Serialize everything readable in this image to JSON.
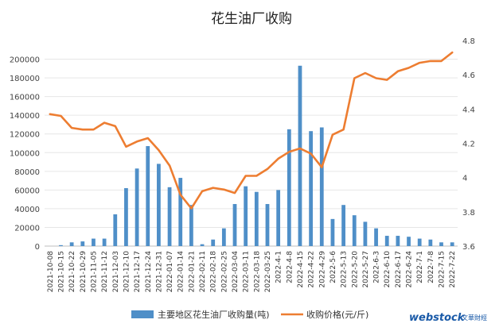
{
  "chart_data": {
    "type": "bar",
    "title": "花生油厂收购",
    "categories": [
      "2021-10-08",
      "2021-10-15",
      "2021-10-22",
      "2021-10-29",
      "2021-11-05",
      "2021-11-12",
      "2021-12-03",
      "2021-12-10",
      "2021-12-17",
      "2021-12-24",
      "2021-12-31",
      "2022-01-07",
      "2022-01-14",
      "2022-01-21",
      "2022-02-11",
      "2022-02-18",
      "2022-02-25",
      "2022-03-04",
      "2022-03-11",
      "2022-03-18",
      "2022-03-25",
      "2022-4-1",
      "2022-4-8",
      "2022-4-15",
      "2022-4-22",
      "2022-4-29",
      "2022-5-6",
      "2022-5-13",
      "2022-5-20",
      "2022-5-27",
      "2022-6-3",
      "2022-6-10",
      "2022-6-17",
      "2022-6-24",
      "2022-7-1",
      "2022-7-8",
      "2022-7-15",
      "2022-7-22"
    ],
    "series": [
      {
        "name": "主要地区花生油厂收购量(吨)",
        "type": "bar",
        "axis": "left",
        "color": "#4f8fc8",
        "values": [
          0,
          1000,
          4000,
          5000,
          8000,
          8000,
          34000,
          62000,
          83000,
          107000,
          88000,
          63000,
          73000,
          44000,
          2000,
          7000,
          19000,
          45000,
          64000,
          58000,
          45000,
          60000,
          125000,
          193000,
          123000,
          127000,
          29000,
          44000,
          33000,
          26000,
          19000,
          11000,
          11000,
          10000,
          8000,
          7000,
          4000,
          4000
        ]
      },
      {
        "name": "收购价格(元/斤)",
        "type": "line",
        "axis": "right",
        "color": "#ed7d31",
        "values": [
          4.37,
          4.36,
          4.29,
          4.28,
          4.28,
          4.32,
          4.3,
          4.18,
          4.21,
          4.23,
          4.16,
          4.07,
          3.9,
          3.82,
          3.92,
          3.94,
          3.93,
          3.91,
          4.01,
          4.01,
          4.05,
          4.11,
          4.15,
          4.17,
          4.14,
          4.06,
          4.25,
          4.28,
          4.58,
          4.61,
          4.58,
          4.57,
          4.62,
          4.64,
          4.67,
          4.68,
          4.68,
          4.73
        ]
      }
    ],
    "ylim_left": [
      0,
      220000
    ],
    "yticks_left": [
      "0",
      "20000",
      "40000",
      "60000",
      "80000",
      "100000",
      "120000",
      "140000",
      "160000",
      "180000",
      "200000"
    ],
    "ylim_right": [
      3.6,
      4.8
    ],
    "yticks_right": [
      "3.6",
      "3.8",
      "4",
      "4.2",
      "4.4",
      "4.6",
      "4.8"
    ],
    "legend_position": "bottom",
    "grid": "horizontal"
  },
  "watermark": {
    "brand": "webstock",
    "cn": "文華財經"
  }
}
